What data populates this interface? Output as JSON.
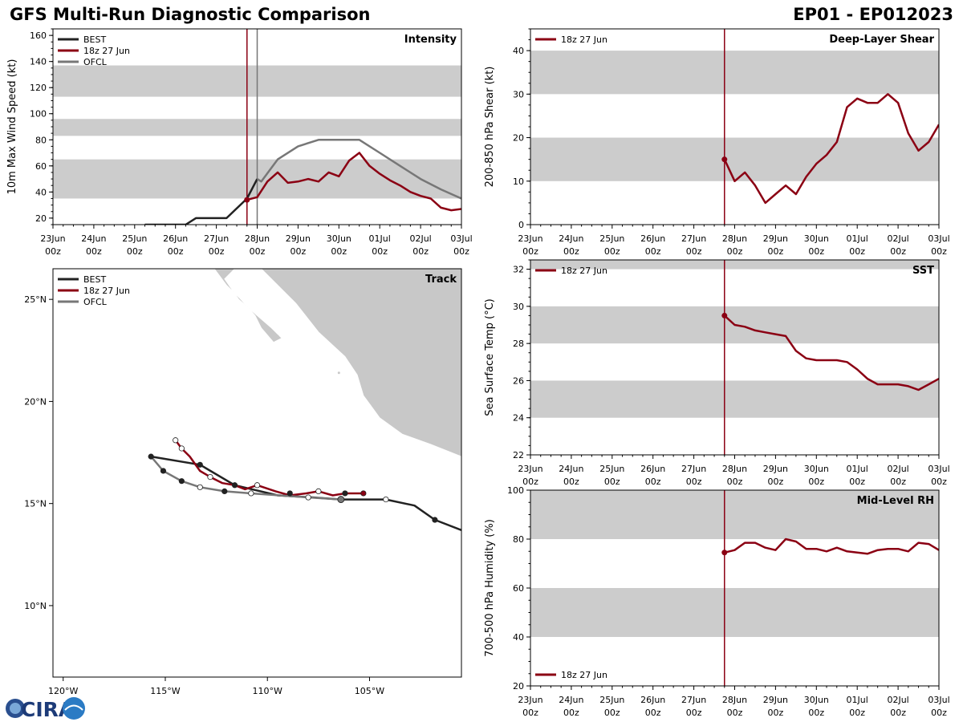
{
  "header": {
    "title": "GFS Multi-Run Diagnostic Comparison",
    "storm_id": "EP01 - EP012023"
  },
  "logo": {
    "text": "CIRA"
  },
  "colors": {
    "best": "#222222",
    "run": "#8b0013",
    "ofcl": "#777777",
    "band": "#cccccc",
    "land": "#c8c8c8"
  },
  "time_axis": {
    "tick_labels": [
      [
        "23Jun",
        "00z"
      ],
      [
        "24Jun",
        "00z"
      ],
      [
        "25Jun",
        "00z"
      ],
      [
        "26Jun",
        "00z"
      ],
      [
        "27Jun",
        "00z"
      ],
      [
        "28Jun",
        "00z"
      ],
      [
        "29Jun",
        "00z"
      ],
      [
        "30Jun",
        "00z"
      ],
      [
        "01Jul",
        "00z"
      ],
      [
        "02Jul",
        "00z"
      ],
      [
        "03Jul",
        "00z"
      ]
    ],
    "run_time_days": 4.75,
    "ofcl_time_days": 5.0
  },
  "chart_data": [
    {
      "id": "intensity",
      "type": "line",
      "title": "Intensity",
      "ylabel": "10m Max Wind Speed (kt)",
      "xlabel": "",
      "xlim": [
        0,
        10
      ],
      "ylim": [
        15,
        165
      ],
      "yticks": [
        20,
        40,
        60,
        80,
        100,
        120,
        140,
        160
      ],
      "bands": [
        [
          35,
          65
        ],
        [
          83,
          96
        ],
        [
          113,
          137
        ]
      ],
      "legend": [
        "BEST",
        "18z 27 Jun",
        "OFCL"
      ],
      "legend_position": "top-left",
      "series": [
        {
          "name": "BEST",
          "key": "best",
          "x": [
            2.25,
            3.25,
            3.5,
            4.25,
            4.75,
            5.0
          ],
          "y": [
            15,
            15,
            20,
            20,
            35,
            50
          ]
        },
        {
          "name": "18z 27 Jun",
          "key": "run",
          "marker_first": true,
          "x": [
            4.75,
            5.0,
            5.25,
            5.5,
            5.75,
            6.0,
            6.25,
            6.5,
            6.75,
            7.0,
            7.25,
            7.5,
            7.75,
            8.0,
            8.25,
            8.5,
            8.75,
            9.0,
            9.25,
            9.5,
            9.75,
            10.0
          ],
          "y": [
            34,
            36,
            48,
            55,
            47,
            48,
            50,
            48,
            55,
            52,
            64,
            70,
            60,
            54,
            49,
            45,
            40,
            37,
            35,
            28,
            26,
            27
          ]
        },
        {
          "name": "OFCL",
          "key": "ofcl",
          "x": [
            5.0,
            5.1,
            5.5,
            6.0,
            6.5,
            7.0,
            7.5,
            8.0,
            8.5,
            9.0,
            9.5,
            10.0
          ],
          "y": [
            50,
            48,
            65,
            75,
            80,
            80,
            80,
            70,
            60,
            50,
            42,
            35
          ]
        }
      ]
    },
    {
      "id": "shear",
      "type": "line",
      "title": "Deep-Layer Shear",
      "ylabel": "200-850 hPa Shear (kt)",
      "xlabel": "",
      "xlim": [
        0,
        10
      ],
      "ylim": [
        0,
        45
      ],
      "yticks": [
        0,
        10,
        20,
        30,
        40
      ],
      "bands": [
        [
          10,
          20
        ],
        [
          30,
          40
        ]
      ],
      "legend": [
        "18z 27 Jun"
      ],
      "legend_position": "top-left",
      "series": [
        {
          "name": "18z 27 Jun",
          "key": "run",
          "marker_first": true,
          "x": [
            4.75,
            5.0,
            5.25,
            5.5,
            5.75,
            6.0,
            6.25,
            6.5,
            6.75,
            7.0,
            7.25,
            7.5,
            7.75,
            8.0,
            8.25,
            8.5,
            8.75,
            9.0,
            9.25,
            9.5,
            9.75,
            10.0
          ],
          "y": [
            15,
            10,
            12,
            9,
            5,
            7,
            9,
            7,
            11,
            14,
            16,
            19,
            27,
            29,
            28,
            28,
            30,
            28,
            21,
            17,
            19,
            23
          ]
        }
      ]
    },
    {
      "id": "sst",
      "type": "line",
      "title": "SST",
      "ylabel": "Sea Surface Temp (°C)",
      "xlabel": "",
      "xlim": [
        0,
        10
      ],
      "ylim": [
        22,
        32.5
      ],
      "yticks": [
        22,
        24,
        26,
        28,
        30,
        32
      ],
      "bands": [
        [
          24,
          26
        ],
        [
          28,
          30
        ],
        [
          32,
          32.5
        ]
      ],
      "legend": [
        "18z 27 Jun"
      ],
      "legend_position": "top-left",
      "series": [
        {
          "name": "18z 27 Jun",
          "key": "run",
          "marker_first": true,
          "x": [
            4.75,
            5.0,
            5.25,
            5.5,
            5.75,
            6.0,
            6.25,
            6.5,
            6.75,
            7.0,
            7.25,
            7.5,
            7.75,
            8.0,
            8.25,
            8.5,
            8.75,
            9.0,
            9.25,
            9.5,
            9.75,
            10.0
          ],
          "y": [
            29.5,
            29.0,
            28.9,
            28.7,
            28.6,
            28.5,
            28.4,
            27.6,
            27.2,
            27.1,
            27.1,
            27.1,
            27.0,
            26.6,
            26.1,
            25.8,
            25.8,
            25.8,
            25.7,
            25.5,
            25.8,
            26.1
          ]
        }
      ]
    },
    {
      "id": "rh",
      "type": "line",
      "title": "Mid-Level RH",
      "ylabel": "700-500 hPa Humidity (%)",
      "xlabel": "",
      "xlim": [
        0,
        10
      ],
      "ylim": [
        20,
        100
      ],
      "yticks": [
        20,
        40,
        60,
        80,
        100
      ],
      "bands": [
        [
          40,
          60
        ],
        [
          80,
          100
        ]
      ],
      "legend": [
        "18z 27 Jun"
      ],
      "legend_position": "bottom-left",
      "series": [
        {
          "name": "18z 27 Jun",
          "key": "run",
          "marker_first": true,
          "x": [
            4.75,
            5.0,
            5.25,
            5.5,
            5.75,
            6.0,
            6.25,
            6.5,
            6.75,
            7.0,
            7.25,
            7.5,
            7.75,
            8.0,
            8.25,
            8.5,
            8.75,
            9.0,
            9.25,
            9.5,
            9.75,
            10.0
          ],
          "y": [
            74.5,
            75.5,
            78.5,
            78.5,
            76.5,
            75.5,
            80,
            79,
            76,
            76,
            75,
            76.5,
            75,
            74.5,
            74,
            75.5,
            76,
            76,
            75,
            78.5,
            78,
            75.5
          ]
        }
      ]
    },
    {
      "id": "track",
      "type": "line",
      "title": "Track",
      "xlabel": "",
      "ylabel": "",
      "xlim": [
        -120.5,
        -100.5
      ],
      "ylim": [
        6.5,
        26.5
      ],
      "xticks": [
        -120,
        -115,
        -110,
        -105
      ],
      "xtick_labels": [
        "120°W",
        "115°W",
        "110°W",
        "105°W"
      ],
      "yticks": [
        10,
        15,
        20,
        25
      ],
      "ytick_labels": [
        "10°N",
        "15°N",
        "20°N",
        "25°N"
      ],
      "legend": [
        "BEST",
        "18z 27 Jun",
        "OFCL"
      ],
      "legend_position": "top-left",
      "series": [
        {
          "name": "BEST",
          "key": "best",
          "lon": [
            -100.5,
            -101.8,
            -102.8,
            -104.2,
            -105.5,
            -106.4,
            -107.8,
            -109.5,
            -111.6,
            -113.3,
            -115.7
          ],
          "lat": [
            13.7,
            14.2,
            14.9,
            15.2,
            15.2,
            15.2,
            15.3,
            15.4,
            15.9,
            16.9,
            17.3
          ],
          "markers": [
            [
              -101.8,
              14.2,
              "filled"
            ],
            [
              -104.2,
              15.2,
              "open"
            ],
            [
              -106.2,
              15.5,
              "filled"
            ],
            [
              -107.5,
              15.6,
              "open"
            ],
            [
              -108.9,
              15.5,
              "filled"
            ],
            [
              -110.5,
              15.9,
              "open"
            ],
            [
              -111.6,
              15.9,
              "filled"
            ],
            [
              -112.8,
              16.3,
              "open"
            ],
            [
              -113.3,
              16.9,
              "filled"
            ],
            [
              -114.2,
              17.7,
              "open"
            ],
            [
              -115.7,
              17.3,
              "filled"
            ]
          ]
        },
        {
          "name": "18z 27 Jun",
          "key": "run",
          "lon": [
            -105.3,
            -106.2,
            -106.8,
            -107.5,
            -108.1,
            -108.9,
            -109.6,
            -110.5,
            -111.1,
            -111.6,
            -112.2,
            -112.8,
            -113.3,
            -113.8,
            -114.2,
            -114.5
          ],
          "lat": [
            15.5,
            15.5,
            15.4,
            15.6,
            15.5,
            15.4,
            15.6,
            15.9,
            15.7,
            15.9,
            16.0,
            16.3,
            16.6,
            17.3,
            17.7,
            18.1
          ],
          "markers": [
            [
              -105.3,
              15.5,
              "filled"
            ],
            [
              -114.5,
              18.1,
              "open"
            ]
          ]
        },
        {
          "name": "OFCL",
          "key": "ofcl",
          "lon": [
            -106.4,
            -108.0,
            -110.8,
            -112.1,
            -113.3,
            -114.2,
            -115.1,
            -115.7
          ],
          "lat": [
            15.2,
            15.3,
            15.5,
            15.6,
            15.8,
            16.1,
            16.6,
            17.3
          ],
          "markers": [
            [
              -106.4,
              15.2,
              "grey"
            ],
            [
              -108.0,
              15.3,
              "open"
            ],
            [
              -110.8,
              15.5,
              "open"
            ],
            [
              -112.1,
              15.6,
              "filled"
            ],
            [
              -113.3,
              15.8,
              "open"
            ],
            [
              -114.2,
              16.1,
              "filled"
            ],
            [
              -115.1,
              16.6,
              "filled"
            ]
          ]
        }
      ]
    }
  ]
}
